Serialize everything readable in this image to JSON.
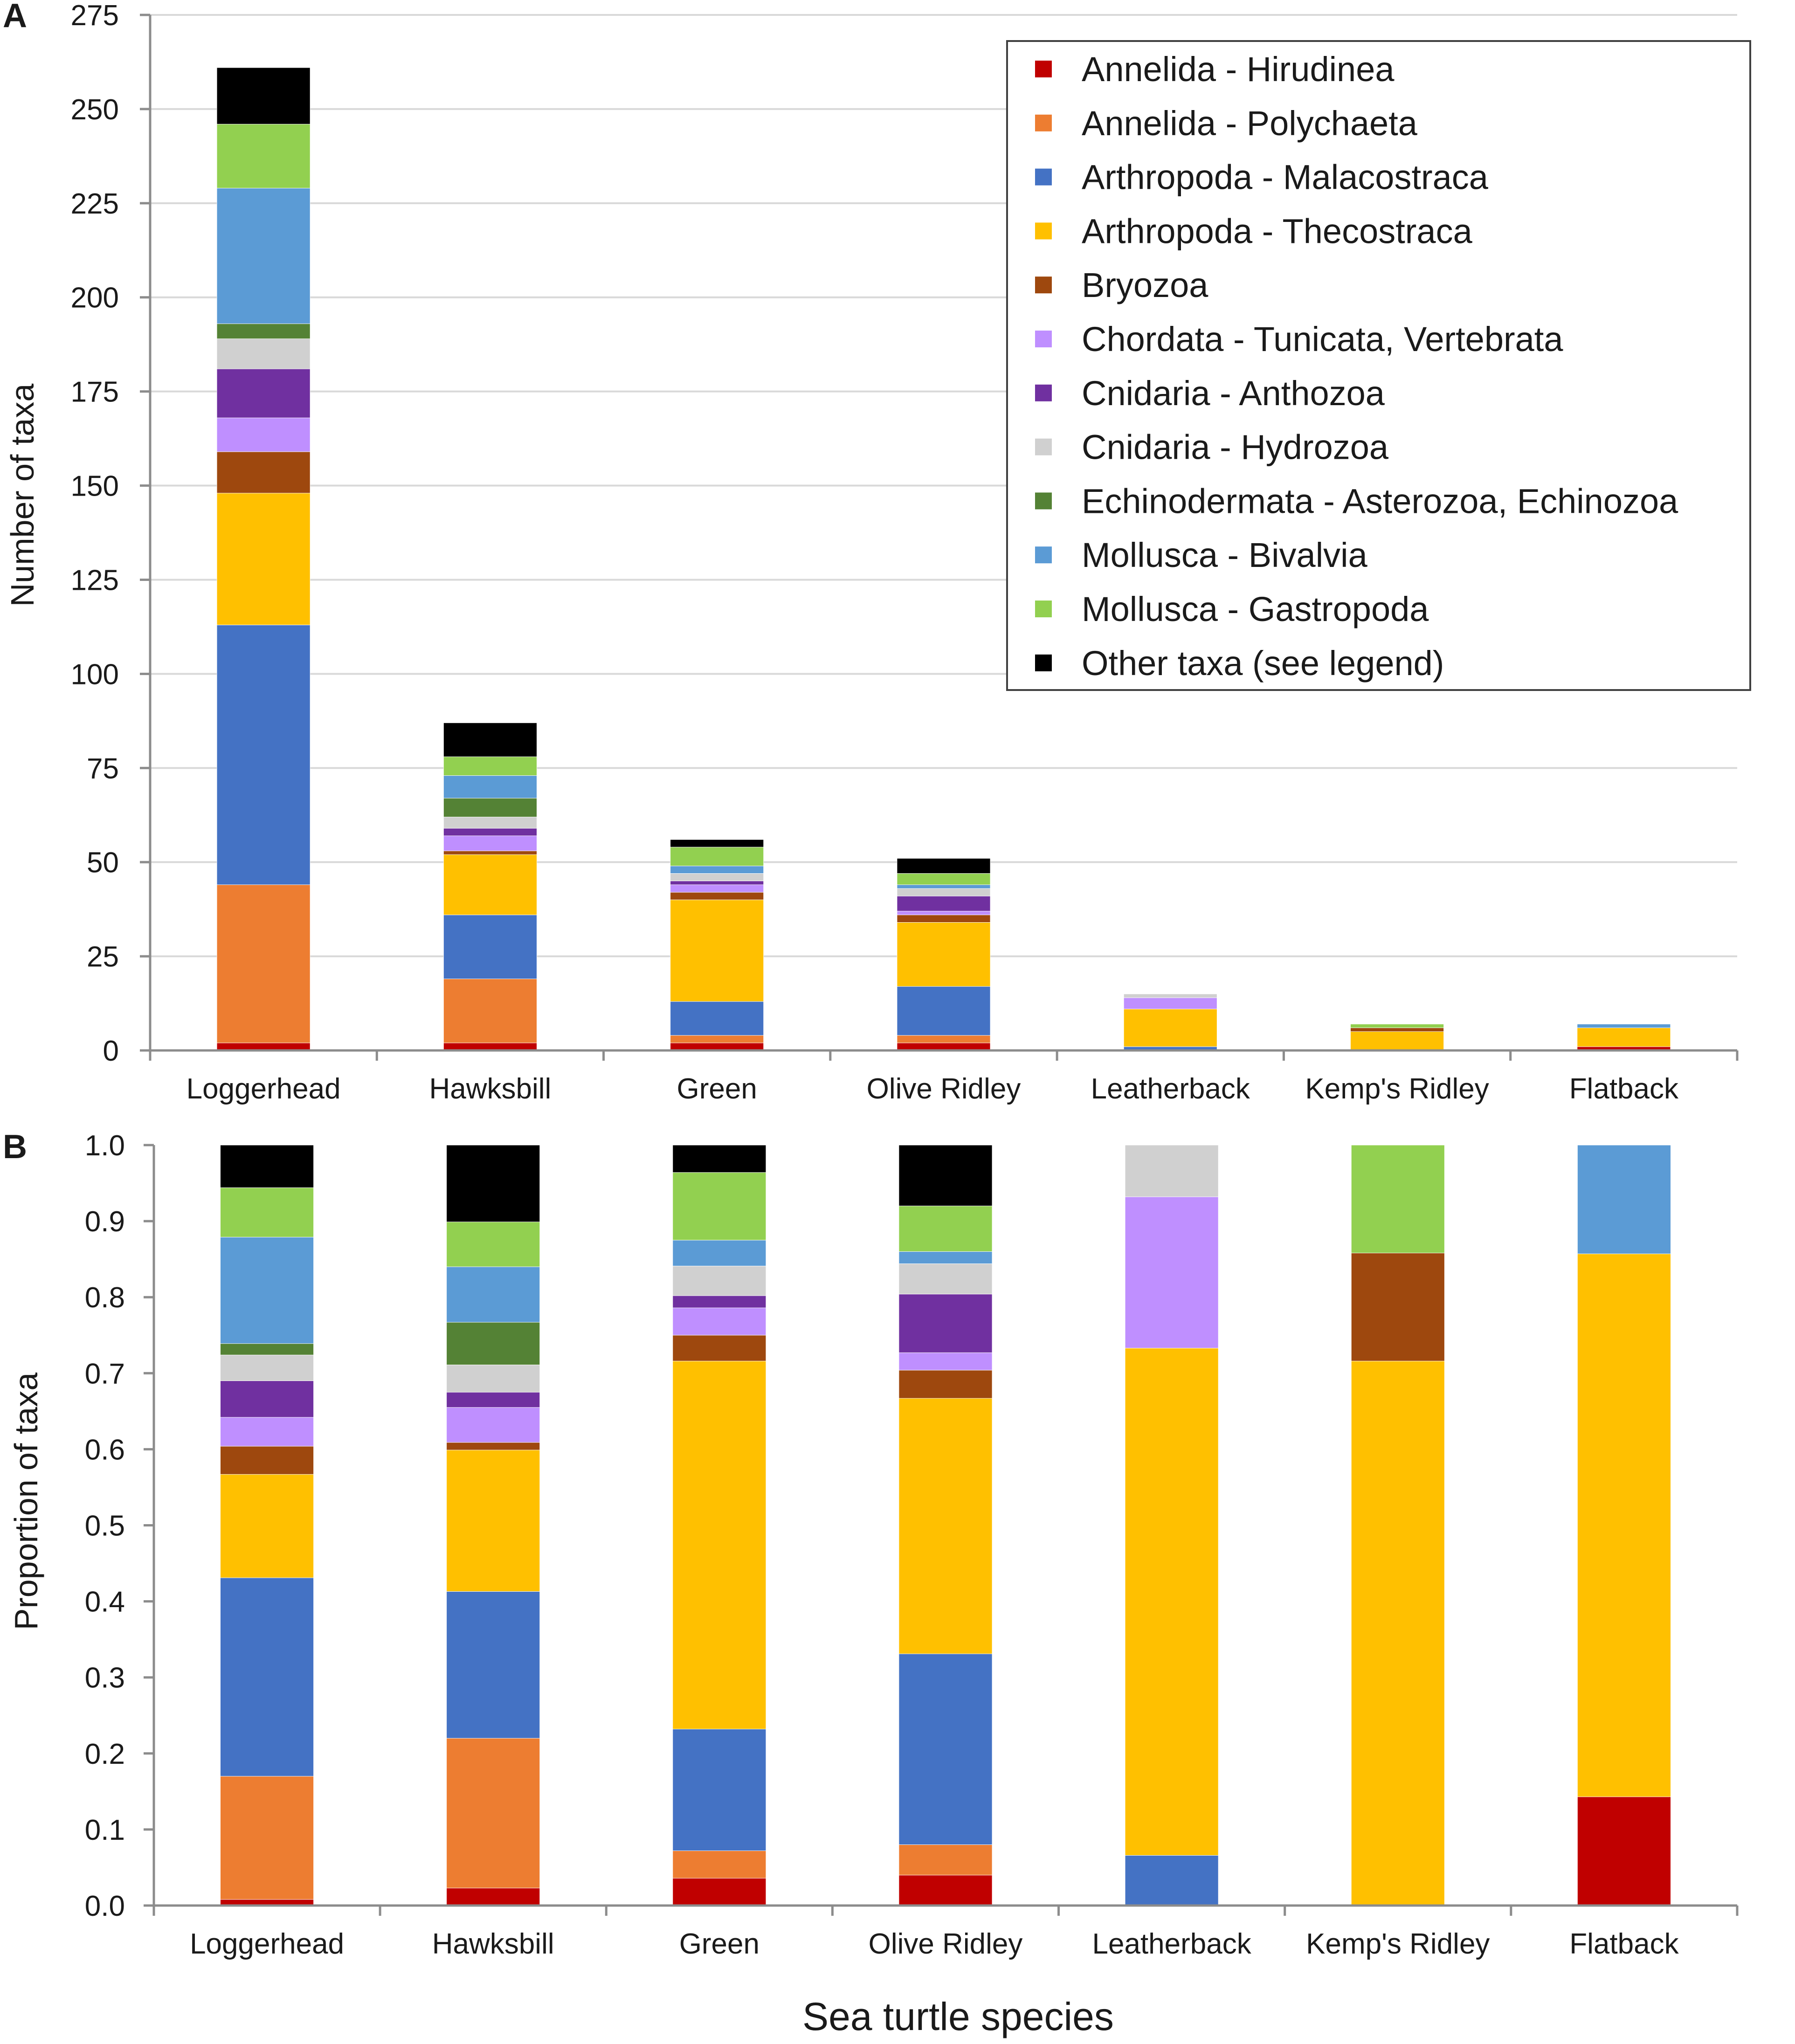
{
  "figure": {
    "xlabel": "Sea turtle species"
  },
  "legend": {
    "entries": [
      {
        "label": "Annelida - Hirudinea",
        "color": "#c00000"
      },
      {
        "label": "Annelida - Polychaeta",
        "color": "#ed7d31"
      },
      {
        "label": "Arthropoda - Malacostraca",
        "color": "#4472c4"
      },
      {
        "label": "Arthropoda - Thecostraca",
        "color": "#ffc000"
      },
      {
        "label": "Bryozoa",
        "color": "#9e480e"
      },
      {
        "label": "Chordata - Tunicata, Vertebrata",
        "color": "#bf8fff"
      },
      {
        "label": "Cnidaria - Anthozoa",
        "color": "#7030a0"
      },
      {
        "label": "Cnidaria - Hydrozoa",
        "color": "#d0d0d0"
      },
      {
        "label": "Echinodermata - Asterozoa, Echinozoa",
        "color": "#548235"
      },
      {
        "label": "Mollusca - Bivalvia",
        "color": "#5b9bd5"
      },
      {
        "label": "Mollusca - Gastropoda",
        "color": "#92d050"
      },
      {
        "label": "Other taxa (see legend)",
        "color": "#000000"
      }
    ]
  },
  "chart_data": [
    {
      "panel": "A",
      "type": "bar",
      "stacked": true,
      "ylabel": "Number of taxa",
      "ylim": [
        0,
        275
      ],
      "yticks": [
        "0",
        "25",
        "50",
        "75",
        "100",
        "125",
        "150",
        "175",
        "200",
        "225",
        "250",
        "275"
      ],
      "grid": true,
      "legend_position": "top-right",
      "categories": [
        "Loggerhead",
        "Hawksbill",
        "Green",
        "Olive Ridley",
        "Leatherback",
        "Kemp's Ridley",
        "Flatback"
      ],
      "series": [
        {
          "name": "Annelida - Hirudinea",
          "values": [
            2,
            2,
            2,
            2,
            0,
            0,
            1
          ]
        },
        {
          "name": "Annelida - Polychaeta",
          "values": [
            42,
            17,
            2,
            2,
            0,
            0,
            0
          ]
        },
        {
          "name": "Arthropoda - Malacostraca",
          "values": [
            69,
            17,
            9,
            13,
            1,
            0,
            0
          ]
        },
        {
          "name": "Arthropoda - Thecostraca",
          "values": [
            35,
            16,
            27,
            17,
            10,
            5,
            5
          ]
        },
        {
          "name": "Bryozoa",
          "values": [
            11,
            1,
            2,
            2,
            0,
            1,
            0
          ]
        },
        {
          "name": "Chordata - Tunicata, Vertebrata",
          "values": [
            9,
            4,
            2,
            1,
            3,
            0,
            0
          ]
        },
        {
          "name": "Cnidaria - Anthozoa",
          "values": [
            13,
            2,
            1,
            4,
            0,
            0,
            0
          ]
        },
        {
          "name": "Cnidaria - Hydrozoa",
          "values": [
            8,
            3,
            2,
            2,
            1,
            0,
            0
          ]
        },
        {
          "name": "Echinodermata - Asterozoa, Echinozoa",
          "values": [
            4,
            5,
            0,
            0,
            0,
            0,
            0
          ]
        },
        {
          "name": "Mollusca - Bivalvia",
          "values": [
            36,
            6,
            2,
            1,
            0,
            0,
            1
          ]
        },
        {
          "name": "Mollusca - Gastropoda",
          "values": [
            17,
            5,
            5,
            3,
            0,
            1,
            0
          ]
        },
        {
          "name": "Other taxa (see legend)",
          "values": [
            15,
            9,
            2,
            4,
            0,
            0,
            0
          ]
        }
      ]
    },
    {
      "panel": "B",
      "type": "bar",
      "stacked": true,
      "ylabel": "Proportion of taxa",
      "ylim": [
        0,
        1
      ],
      "yticks": [
        "0.0",
        "0.1",
        "0.2",
        "0.3",
        "0.4",
        "0.5",
        "0.6",
        "0.7",
        "0.8",
        "0.9",
        "1.0"
      ],
      "grid": false,
      "categories": [
        "Loggerhead",
        "Hawksbill",
        "Green",
        "Olive Ridley",
        "Leatherback",
        "Kemp's Ridley",
        "Flatback"
      ],
      "series": [
        {
          "name": "Annelida - Hirudinea",
          "values": [
            0.008,
            0.023,
            0.036,
            0.04,
            0.0,
            0.0,
            0.143
          ]
        },
        {
          "name": "Annelida - Polychaeta",
          "values": [
            0.162,
            0.197,
            0.036,
            0.04,
            0.0,
            0.0,
            0.0
          ]
        },
        {
          "name": "Arthropoda - Malacostraca",
          "values": [
            0.261,
            0.193,
            0.16,
            0.251,
            0.066,
            0.0,
            0.0
          ]
        },
        {
          "name": "Arthropoda - Thecostraca",
          "values": [
            0.136,
            0.186,
            0.484,
            0.336,
            0.667,
            0.716,
            0.714
          ]
        },
        {
          "name": "Bryozoa",
          "values": [
            0.037,
            0.01,
            0.034,
            0.037,
            0.0,
            0.142,
            0.0
          ]
        },
        {
          "name": "Chordata - Tunicata, Vertebrata",
          "values": [
            0.038,
            0.046,
            0.036,
            0.023,
            0.199,
            0.0,
            0.0
          ]
        },
        {
          "name": "Cnidaria - Anthozoa",
          "values": [
            0.048,
            0.02,
            0.016,
            0.077,
            0.0,
            0.0,
            0.0
          ]
        },
        {
          "name": "Cnidaria - Hydrozoa",
          "values": [
            0.034,
            0.036,
            0.039,
            0.04,
            0.068,
            0.0,
            0.0
          ]
        },
        {
          "name": "Echinodermata - Asterozoa, Echinozoa",
          "values": [
            0.015,
            0.056,
            0.0,
            0.0,
            0.0,
            0.0,
            0.0
          ]
        },
        {
          "name": "Mollusca - Bivalvia",
          "values": [
            0.14,
            0.073,
            0.034,
            0.016,
            0.0,
            0.0,
            0.143
          ]
        },
        {
          "name": "Mollusca - Gastropoda",
          "values": [
            0.065,
            0.059,
            0.089,
            0.06,
            0.0,
            0.142,
            0.0
          ]
        },
        {
          "name": "Other taxa (see legend)",
          "values": [
            0.056,
            0.101,
            0.036,
            0.08,
            0.0,
            0.0,
            0.0
          ]
        }
      ]
    }
  ]
}
